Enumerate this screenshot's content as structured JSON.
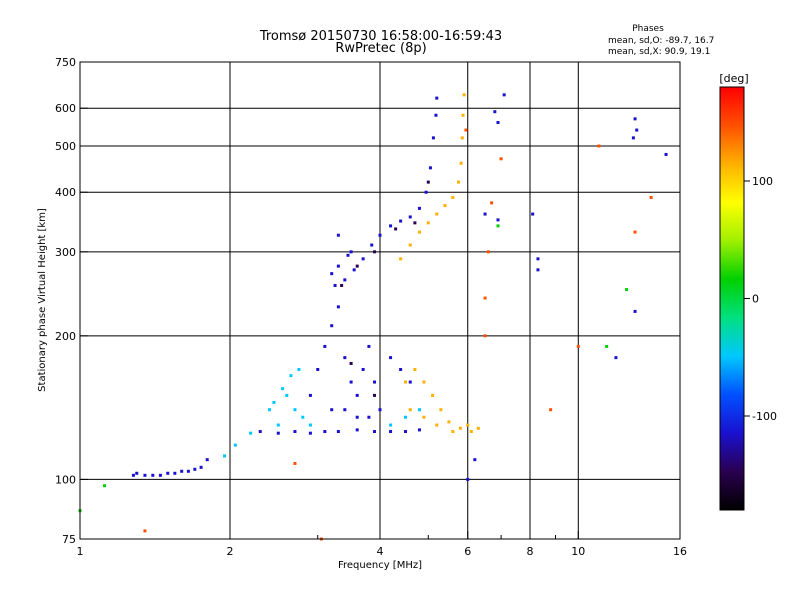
{
  "chart_data": {
    "type": "scatter",
    "title": "Tromsø 20150730 16:58:00-16:59:43",
    "subtitle": "RwPretec (8p)",
    "phases": {
      "heading": "Phases",
      "line_o": "mean, sd,O: -89.7, 16.7",
      "line_x": "mean, sd,X: 90.9, 19.1"
    },
    "xlabel": "Frequency [MHz]",
    "ylabel": "Stationary phase Virtual Height [km]",
    "x_scale": "log",
    "y_scale": "log",
    "xlim": [
      1,
      16
    ],
    "ylim": [
      75,
      750
    ],
    "x_ticks": [
      {
        "v": 1,
        "label": "1"
      },
      {
        "v": 2,
        "label": "2"
      },
      {
        "v": 4,
        "label": "4"
      },
      {
        "v": 6,
        "label": "6"
      },
      {
        "v": 8,
        "label": "8"
      },
      {
        "v": 10,
        "label": "10"
      },
      {
        "v": 16,
        "label": "16"
      }
    ],
    "x_minor": [
      3,
      5,
      7,
      9
    ],
    "x_grid": [
      2,
      4,
      6,
      8,
      10
    ],
    "y_ticks": [
      {
        "v": 75,
        "label": "75"
      },
      {
        "v": 100,
        "label": "100"
      },
      {
        "v": 200,
        "label": "200"
      },
      {
        "v": 300,
        "label": "300"
      },
      {
        "v": 400,
        "label": "400"
      },
      {
        "v": 500,
        "label": "500"
      },
      {
        "v": 600,
        "label": "600"
      },
      {
        "v": 750,
        "label": "750"
      }
    ],
    "y_grid": [
      100,
      200,
      300,
      400,
      500,
      600
    ],
    "grid": true,
    "colorbar": {
      "label": "[deg]",
      "range": [
        -180,
        180
      ],
      "ticks": [
        {
          "v": 100,
          "label": "100"
        },
        {
          "v": 0,
          "label": "0"
        },
        {
          "v": -100,
          "label": "-100"
        }
      ],
      "colors": [
        "#000000",
        "#2a0050",
        "#1a10d0",
        "#0050ff",
        "#00c8ff",
        "#00e080",
        "#00d000",
        "#a0f000",
        "#ffff00",
        "#ffb000",
        "#ff5000",
        "#ff0000"
      ]
    },
    "series": [
      {
        "phase": -100,
        "points": [
          [
            1.28,
            102
          ],
          [
            1.3,
            103
          ],
          [
            1.35,
            102
          ],
          [
            1.4,
            102
          ],
          [
            1.45,
            102
          ],
          [
            1.5,
            103
          ],
          [
            1.55,
            103
          ],
          [
            1.6,
            104
          ],
          [
            1.65,
            104
          ],
          [
            1.7,
            105
          ],
          [
            1.75,
            106
          ],
          [
            1.8,
            110
          ],
          [
            2.3,
            126
          ],
          [
            2.5,
            125
          ],
          [
            2.7,
            126
          ],
          [
            2.9,
            125
          ],
          [
            3.1,
            126
          ],
          [
            3.3,
            126
          ],
          [
            3.6,
            127
          ],
          [
            3.9,
            126
          ],
          [
            4.2,
            126
          ],
          [
            4.5,
            126
          ],
          [
            4.8,
            127
          ],
          [
            2.9,
            150
          ],
          [
            3.0,
            170
          ],
          [
            3.1,
            190
          ],
          [
            3.2,
            210
          ],
          [
            3.3,
            230
          ],
          [
            3.4,
            180
          ],
          [
            3.5,
            160
          ],
          [
            3.6,
            150
          ],
          [
            3.7,
            170
          ],
          [
            3.8,
            190
          ],
          [
            3.9,
            160
          ],
          [
            4.0,
            140
          ],
          [
            4.2,
            180
          ],
          [
            4.4,
            170
          ],
          [
            4.6,
            160
          ],
          [
            3.2,
            140
          ],
          [
            3.4,
            140
          ],
          [
            3.6,
            135
          ],
          [
            3.8,
            135
          ],
          [
            3.25,
            255
          ],
          [
            3.4,
            262
          ],
          [
            3.55,
            275
          ],
          [
            3.7,
            290
          ],
          [
            3.85,
            310
          ],
          [
            4.0,
            325
          ],
          [
            4.2,
            340
          ],
          [
            4.4,
            348
          ],
          [
            4.6,
            355
          ],
          [
            4.8,
            370
          ],
          [
            4.95,
            400
          ],
          [
            5.05,
            450
          ],
          [
            5.12,
            520
          ],
          [
            5.18,
            580
          ],
          [
            5.2,
            630
          ],
          [
            3.2,
            270
          ],
          [
            3.3,
            280
          ],
          [
            3.45,
            295
          ],
          [
            3.3,
            325
          ],
          [
            3.5,
            300
          ]
        ]
      },
      {
        "phase": -160,
        "points": [
          [
            3.35,
            255
          ],
          [
            3.6,
            280
          ],
          [
            3.9,
            300
          ],
          [
            4.3,
            335
          ],
          [
            4.7,
            345
          ],
          [
            5.0,
            420
          ],
          [
            3.5,
            175
          ],
          [
            3.9,
            150
          ]
        ]
      },
      {
        "phase": -50,
        "points": [
          [
            1.95,
            112
          ],
          [
            2.05,
            118
          ],
          [
            2.2,
            125
          ],
          [
            2.4,
            140
          ],
          [
            2.55,
            155
          ],
          [
            2.65,
            165
          ],
          [
            2.75,
            170
          ],
          [
            2.6,
            150
          ],
          [
            2.7,
            140
          ],
          [
            2.8,
            135
          ],
          [
            2.9,
            130
          ],
          [
            4.2,
            130
          ],
          [
            4.5,
            135
          ],
          [
            4.8,
            140
          ],
          [
            2.5,
            130
          ],
          [
            2.45,
            145
          ]
        ]
      },
      {
        "phase": 100,
        "points": [
          [
            4.4,
            290
          ],
          [
            4.6,
            310
          ],
          [
            4.8,
            330
          ],
          [
            5.0,
            345
          ],
          [
            5.2,
            360
          ],
          [
            5.4,
            375
          ],
          [
            5.6,
            390
          ],
          [
            5.75,
            420
          ],
          [
            5.82,
            460
          ],
          [
            5.85,
            520
          ],
          [
            5.87,
            580
          ],
          [
            5.9,
            640
          ],
          [
            4.5,
            160
          ],
          [
            4.7,
            170
          ],
          [
            4.9,
            160
          ],
          [
            5.1,
            150
          ],
          [
            5.3,
            140
          ],
          [
            5.5,
            132
          ],
          [
            5.8,
            128
          ],
          [
            6.1,
            126
          ],
          [
            4.6,
            140
          ],
          [
            4.9,
            135
          ],
          [
            5.2,
            130
          ],
          [
            5.6,
            126
          ],
          [
            6.0,
            130
          ],
          [
            6.3,
            128
          ]
        ]
      },
      {
        "phase": 140,
        "points": [
          [
            5.95,
            540
          ],
          [
            6.6,
            300
          ],
          [
            6.5,
            240
          ],
          [
            6.5,
            200
          ],
          [
            7.0,
            470
          ],
          [
            6.7,
            380
          ],
          [
            11.0,
            500
          ],
          [
            13.0,
            330
          ],
          [
            14.0,
            390
          ],
          [
            8.8,
            140
          ],
          [
            1.35,
            78
          ],
          [
            3.05,
            75
          ],
          [
            2.7,
            108
          ],
          [
            10.0,
            190
          ]
        ]
      },
      {
        "phase": -110,
        "points": [
          [
            6.5,
            360
          ],
          [
            6.2,
            110
          ],
          [
            6.0,
            100
          ],
          [
            7.1,
            640
          ],
          [
            6.8,
            590
          ],
          [
            6.9,
            560
          ],
          [
            8.3,
            275
          ],
          [
            8.3,
            290
          ],
          [
            8.1,
            360
          ],
          [
            6.9,
            350
          ],
          [
            13.0,
            570
          ],
          [
            13.1,
            540
          ],
          [
            12.9,
            520
          ],
          [
            15.0,
            480
          ],
          [
            11.9,
            180
          ],
          [
            13.0,
            225
          ]
        ]
      },
      {
        "phase": 20,
        "points": [
          [
            12.5,
            250
          ],
          [
            11.4,
            190
          ],
          [
            1.12,
            97
          ],
          [
            1.0,
            86
          ],
          [
            6.9,
            340
          ]
        ]
      }
    ]
  }
}
